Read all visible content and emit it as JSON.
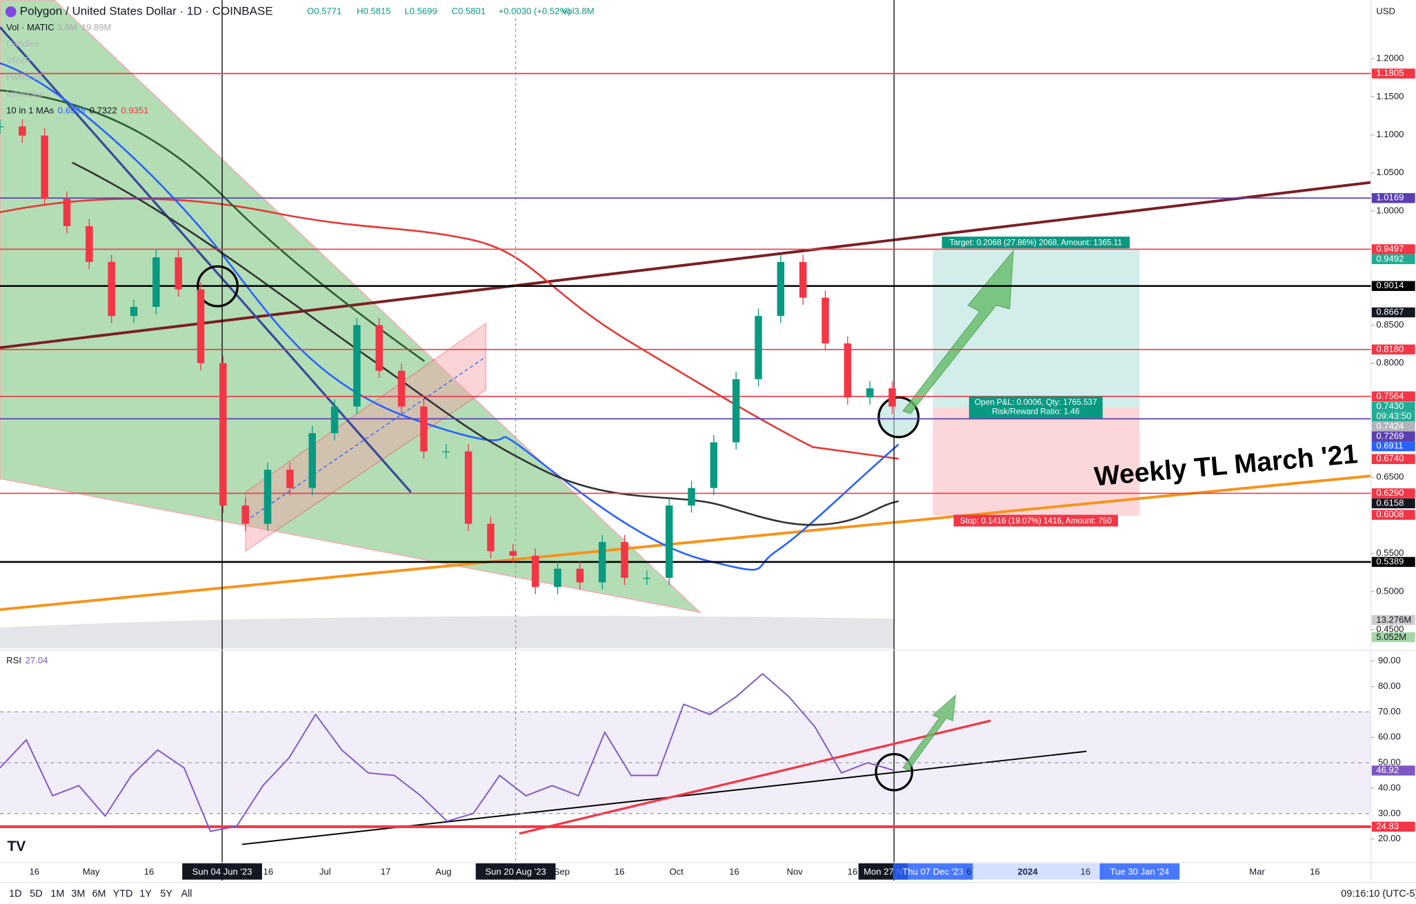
{
  "header": {
    "symbol": "Polygon / United States Dollar · 1D · COINBASE",
    "open": "O0.5771",
    "high": "H0.5815",
    "low": "L0.5699",
    "close": "C0.5801",
    "change": "+0.0030 (+0.52%)",
    "volume": "Vol3.8M",
    "currency": "USD"
  },
  "indicators": {
    "vol": "Vol · MATIC",
    "vol_a": "3.8M",
    "vol_b": "19.89M",
    "hidden": [
      "Candles",
      "VRVP",
      "Pivots HL",
      "Ichimoku"
    ],
    "mas": "10 in 1 MAs",
    "ma_values": [
      "0.6988",
      "0.7322",
      "0.9351"
    ],
    "rsi": "RSI",
    "rsi_value": "27.04"
  },
  "price_axis": {
    "ticks": [
      {
        "value": 1.2,
        "label": "1.2000"
      },
      {
        "value": 1.15,
        "label": "1.1500"
      },
      {
        "value": 1.1,
        "label": "1.1000"
      },
      {
        "value": 1.05,
        "label": "1.0500"
      },
      {
        "value": 1,
        "label": "1.0000"
      },
      {
        "value": 0.85,
        "label": "0.8500"
      },
      {
        "value": 0.8,
        "label": "0.8000"
      },
      {
        "value": 0.65,
        "label": "0.6500"
      },
      {
        "value": 0.55,
        "label": "0.5500"
      },
      {
        "value": 0.5,
        "label": "0.5000"
      },
      {
        "value": 0.45,
        "label": "0.4500"
      }
    ],
    "levels": [
      {
        "value": 1.1805,
        "label": "1.1805",
        "color": "#f23645",
        "line": true
      },
      {
        "value": 1.0169,
        "label": "1.0169",
        "color": "#5b3fb0",
        "line": true
      },
      {
        "value": 0.9497,
        "label": "0.9497",
        "color": "#f23645",
        "line": true
      },
      {
        "value": 0.9492,
        "label": "0.9492",
        "color": "#22ab94"
      },
      {
        "value": 0.9014,
        "label": "0.9014",
        "color": "#000000",
        "line": true
      },
      {
        "value": 0.8667,
        "label": "0.8667",
        "color": "#131722"
      },
      {
        "value": 0.818,
        "label": "0.8180",
        "color": "#f23645",
        "line": true
      },
      {
        "value": 0.7564,
        "label": "0.7564",
        "color": "#f23645",
        "line": true
      },
      {
        "value": 0.743,
        "label": "0.7430",
        "color": "#22ab94"
      },
      {
        "value": 0.7424,
        "label": "0.7424",
        "color": "#b2b5be"
      },
      {
        "value": 0.7269,
        "label": "0.7269",
        "color": "#5b3fb0",
        "line": true
      },
      {
        "value": 0.6911,
        "label": "0.6911",
        "color": "#2962ff"
      },
      {
        "value": 0.674,
        "label": "0.6740",
        "color": "#f23645"
      },
      {
        "value": 0.629,
        "label": "0.6290",
        "color": "#f23645",
        "line": true
      },
      {
        "value": 0.6158,
        "label": "0.6158",
        "color": "#131722"
      },
      {
        "value": 0.6008,
        "label": "0.6008",
        "color": "#f23645"
      },
      {
        "value": 0.5389,
        "label": "0.5389",
        "color": "#000000",
        "line": true
      }
    ],
    "countdown": "09:43:50",
    "volume_labels": [
      "13.276M",
      "5.052M"
    ]
  },
  "candles": {
    "closes": [
      1.111,
      1.099,
      1.016,
      0.98,
      0.933,
      0.862,
      0.874,
      0.939,
      0.897,
      0.8,
      0.613,
      0.589,
      0.66,
      0.636,
      0.708,
      0.743,
      0.85,
      0.79,
      0.743,
      0.684,
      0.684,
      0.589,
      0.553,
      0.547,
      0.506,
      0.53,
      0.512,
      0.565,
      0.518,
      0.518,
      0.613,
      0.636,
      0.696,
      0.779,
      0.862,
      0.933,
      0.886,
      0.826,
      0.755,
      0.767,
      0.743
    ]
  },
  "rsi_axis": {
    "ticks": [
      {
        "value": 90,
        "label": "90.00"
      },
      {
        "value": 80,
        "label": "80.00"
      },
      {
        "value": 70,
        "label": "70.00"
      },
      {
        "value": 60,
        "label": "60.00"
      },
      {
        "value": 50,
        "label": "50.00"
      },
      {
        "value": 40,
        "label": "40.00"
      },
      {
        "value": 30,
        "label": "30.00"
      },
      {
        "value": 20,
        "label": "20.00"
      }
    ],
    "badges": [
      {
        "value": 46.92,
        "label": "46.92",
        "color": "#7e57c2"
      },
      {
        "value": 24.83,
        "label": "24.83",
        "color": "#f23645"
      }
    ]
  },
  "rsi": {
    "values": [
      48,
      59,
      37,
      41,
      29,
      45,
      55,
      48,
      23,
      25,
      41,
      52,
      69,
      55,
      46,
      45,
      37,
      27,
      30,
      45,
      37,
      41,
      37,
      62,
      45,
      45,
      73,
      69,
      76,
      85,
      76,
      64,
      46,
      50,
      47
    ]
  },
  "time_axis": [
    {
      "text": "16"
    },
    {
      "text": "May"
    },
    {
      "text": "16"
    },
    {
      "text": "Sun 04 Jun '23",
      "hl": "dark"
    },
    {
      "text": "16"
    },
    {
      "text": "Jul"
    },
    {
      "text": "17"
    },
    {
      "text": "Aug"
    },
    {
      "text": "Sun 20 Aug '23",
      "hl": "dark"
    },
    {
      "text": "Sep"
    },
    {
      "text": "16"
    },
    {
      "text": "Oct"
    },
    {
      "text": "16"
    },
    {
      "text": "Nov"
    },
    {
      "text": "16"
    },
    {
      "text": "Mon 27 N",
      "hl": "dark"
    },
    {
      "text": "Thu 07 Dec '23",
      "hl": "blue"
    },
    {
      "text": "6"
    },
    {
      "text": "2024"
    },
    {
      "text": "16"
    },
    {
      "text": "Tue 30 Jan '24",
      "hl": "blue"
    },
    {
      "text": "Mar"
    },
    {
      "text": "16"
    }
  ],
  "annotations": {
    "target": "Target: 0.2068 (27.86%) 2068, Amount: 1365.11",
    "pnl": "Open P&L: 0.0006, Qty: 1765.537",
    "rr": "Risk/Reward Ratio: 1.46",
    "stop": "Stop: 0.1416 (19.07%) 1416, Amount: 750",
    "weekly": "Weekly TL March '21"
  },
  "footer": {
    "ranges": [
      "1D",
      "5D",
      "1M",
      "3M",
      "6M",
      "YTD",
      "1Y",
      "5Y",
      "All"
    ],
    "clock": "09:16:10 (UTC-5)"
  }
}
